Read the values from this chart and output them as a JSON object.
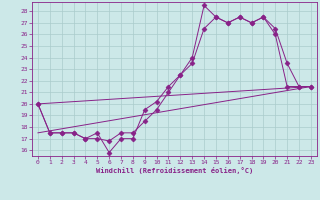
{
  "xlabel": "Windchill (Refroidissement éolien,°C)",
  "bg_color": "#cce8e8",
  "grid_color": "#aacccc",
  "line_color": "#882288",
  "xlim": [
    -0.5,
    23.5
  ],
  "ylim": [
    15.5,
    28.8
  ],
  "xticks": [
    0,
    1,
    2,
    3,
    4,
    5,
    6,
    7,
    8,
    9,
    10,
    11,
    12,
    13,
    14,
    15,
    16,
    17,
    18,
    19,
    20,
    21,
    22,
    23
  ],
  "yticks": [
    16,
    17,
    18,
    19,
    20,
    21,
    22,
    23,
    24,
    25,
    26,
    27,
    28
  ],
  "series1_x": [
    0,
    1,
    2,
    3,
    4,
    5,
    6,
    7,
    8,
    9,
    10,
    11,
    12,
    13,
    14,
    15,
    16,
    17,
    18,
    19,
    20,
    21,
    22,
    23
  ],
  "series1_y": [
    20.0,
    17.5,
    17.5,
    17.5,
    17.0,
    17.5,
    15.8,
    17.0,
    17.0,
    19.5,
    20.2,
    21.5,
    22.5,
    24.0,
    28.5,
    27.5,
    27.0,
    27.5,
    27.0,
    27.5,
    26.5,
    23.5,
    21.5,
    21.5
  ],
  "series2_x": [
    0,
    1,
    2,
    3,
    4,
    5,
    6,
    7,
    8,
    9,
    10,
    11,
    12,
    13,
    14,
    15,
    16,
    17,
    18,
    19,
    20,
    21,
    22,
    23
  ],
  "series2_y": [
    20.0,
    17.5,
    17.5,
    17.5,
    17.0,
    17.0,
    16.8,
    17.5,
    17.5,
    18.5,
    19.5,
    21.0,
    22.5,
    23.5,
    26.5,
    27.5,
    27.0,
    27.5,
    27.0,
    27.5,
    26.0,
    21.5,
    21.5,
    21.5
  ],
  "series3_x": [
    0,
    23
  ],
  "series3_y": [
    17.5,
    21.5
  ],
  "series4_x": [
    0,
    23
  ],
  "series4_y": [
    20.0,
    21.5
  ]
}
